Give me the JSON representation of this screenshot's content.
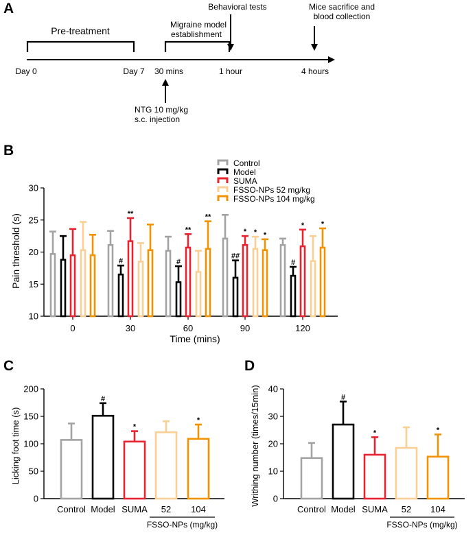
{
  "panel_letters": {
    "a": "A",
    "b": "B",
    "c": "C",
    "d": "D"
  },
  "timeline": {
    "pretreatment": "Pre-treatment",
    "migraine_line1": "Migraine model",
    "migraine_line2": "establishment",
    "behavioral": "Behavioral tests",
    "sacrifice_line1": "Mice sacrifice and",
    "sacrifice_line2": "blood collection",
    "ticks": [
      "Day 0",
      "Day 7",
      "30 mins",
      "1 hour",
      "4 hours"
    ],
    "ntg_line1": "NTG 10 mg/kg",
    "ntg_line2": "s.c. injection"
  },
  "chart_data": [
    {
      "id": "B",
      "type": "bar",
      "ylabel": "Pain threshold (s)",
      "xlabel": "Time (mins)",
      "ylim": [
        10,
        30
      ],
      "yticks": [
        10,
        15,
        20,
        25,
        30
      ],
      "categories": [
        "0",
        "30",
        "60",
        "90",
        "120"
      ],
      "series": [
        {
          "name": "Control",
          "color": "#a3a3a3",
          "values": [
            19.7,
            21.1,
            20.2,
            22.1,
            21.1
          ],
          "errors": [
            3.5,
            2.2,
            2.2,
            3.7,
            1.0
          ],
          "labels": [
            "",
            "",
            "",
            "",
            ""
          ]
        },
        {
          "name": "Model",
          "color": "#000000",
          "values": [
            18.8,
            16.5,
            15.3,
            16.0,
            16.3
          ],
          "errors": [
            3.7,
            1.4,
            2.5,
            2.7,
            1.4
          ],
          "labels": [
            "",
            "#",
            "#",
            "##",
            "#"
          ]
        },
        {
          "name": "SUMA",
          "color": "#e8232f",
          "values": [
            19.5,
            21.7,
            20.7,
            21.1,
            20.9
          ],
          "errors": [
            4.1,
            3.6,
            2.1,
            1.4,
            2.6
          ],
          "labels": [
            "",
            "**",
            "**",
            "*",
            "*"
          ]
        },
        {
          "name": "FSSO-NPs 52 mg/kg",
          "color": "#f9cf93",
          "values": [
            20.3,
            18.5,
            16.9,
            20.5,
            18.6
          ],
          "errors": [
            4.4,
            2.9,
            3.3,
            1.9,
            3.9
          ],
          "labels": [
            "",
            "",
            "",
            "*",
            ""
          ]
        },
        {
          "name": "FSSO-NPs 104 mg/kg",
          "color": "#f39200",
          "values": [
            19.5,
            20.3,
            20.5,
            20.3,
            20.7
          ],
          "errors": [
            3.2,
            4.0,
            4.3,
            1.7,
            3.0
          ],
          "labels": [
            "",
            "",
            "**",
            "*",
            "*"
          ]
        }
      ]
    },
    {
      "id": "C",
      "type": "bar",
      "ylabel": "Licking foot time (s)",
      "xlabel": "",
      "ylim": [
        0,
        200
      ],
      "yticks": [
        0,
        50,
        100,
        150,
        200
      ],
      "categories": [
        "Control",
        "Model",
        "SUMA",
        "52",
        "104"
      ],
      "colors": [
        "#a3a3a3",
        "#000000",
        "#e8232f",
        "#f9cf93",
        "#f39200"
      ],
      "values": [
        107,
        151,
        104,
        121,
        109
      ],
      "errors": [
        30,
        23,
        19,
        20,
        26
      ],
      "labels": [
        "",
        "#",
        "*",
        "",
        "*"
      ],
      "group_label": "FSSO-NPs (mg/kg)"
    },
    {
      "id": "D",
      "type": "bar",
      "ylabel": "Writhing number (times/15min)",
      "xlabel": "",
      "ylim": [
        0,
        40
      ],
      "yticks": [
        0,
        10,
        20,
        30,
        40
      ],
      "categories": [
        "Control",
        "Model",
        "SUMA",
        "52",
        "104"
      ],
      "colors": [
        "#a3a3a3",
        "#000000",
        "#e8232f",
        "#f9cf93",
        "#f39200"
      ],
      "values": [
        14.8,
        27.0,
        16.0,
        18.5,
        15.3
      ],
      "errors": [
        5.5,
        8.4,
        6.4,
        7.5,
        8.1
      ],
      "labels": [
        "",
        "#",
        "*",
        "",
        "*"
      ],
      "group_label": "FSSO-NPs (mg/kg)"
    }
  ]
}
